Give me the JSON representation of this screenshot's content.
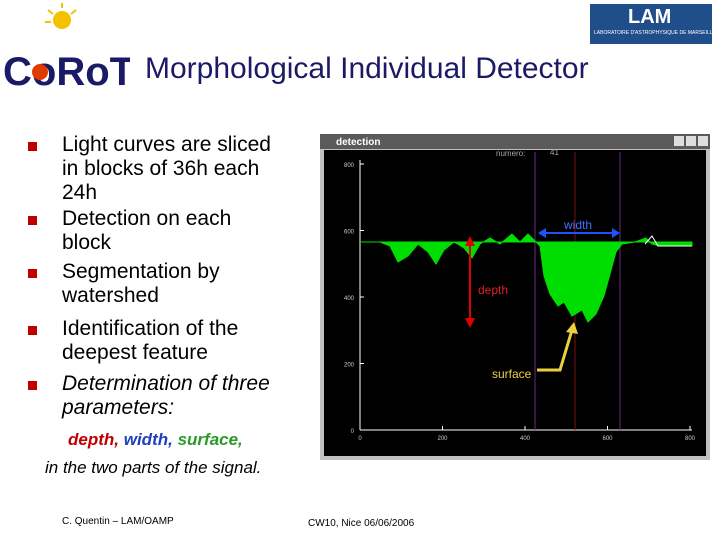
{
  "header": {
    "title": "Morphological Individual Detector",
    "logo_left": "CoRoT",
    "logo_right": "LAM",
    "logo_right_sub": "LABORATOIRE D'ASTROPHYSIQUE DE MARSEILLE"
  },
  "bullets": [
    {
      "lines": [
        "Light curves are sliced",
        "in blocks of 36h each",
        "24h"
      ],
      "italic": false
    },
    {
      "lines": [
        "Detection on each",
        "block"
      ],
      "italic": false
    },
    {
      "lines": [
        "Segmentation by",
        "watershed"
      ],
      "italic": false
    },
    {
      "lines": [
        "Identification of the",
        "deepest feature"
      ],
      "italic": false
    },
    {
      "lines": [
        "Determination of three",
        "parameters:"
      ],
      "italic": true
    }
  ],
  "parameters": {
    "depth": "depth,",
    "width": "width,",
    "surface": "surface,"
  },
  "note": "in the two parts of the signal.",
  "figure": {
    "window_title": "detection",
    "label": "numero:",
    "number": "41",
    "yticks": [
      "800",
      "600",
      "400",
      "200",
      "0"
    ],
    "xticks": [
      "0",
      "200",
      "400",
      "600",
      "800"
    ],
    "annotations": {
      "width": "width",
      "depth": "depth",
      "surface": "surface"
    }
  },
  "footer": {
    "author": "C. Quentin – LAM/OAMP",
    "event": "CW10, Nice 06/06/2006"
  }
}
